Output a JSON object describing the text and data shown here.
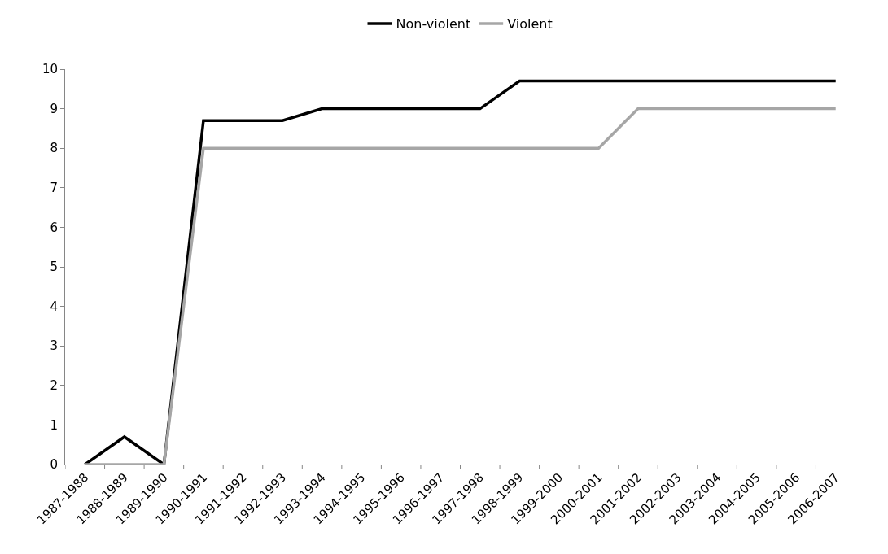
{
  "chart_data": {
    "type": "line",
    "categories": [
      "1987-1988",
      "1988-1989",
      "1989-1990",
      "1990-1991",
      "1991-1992",
      "1992-1993",
      "1993-1994",
      "1994-1995",
      "1995-1996",
      "1996-1997",
      "1997-1998",
      "1998-1999",
      "1999-2000",
      "2000-2001",
      "2001-2002",
      "2002-2003",
      "2003-2004",
      "2004-2005",
      "2005-2006",
      "2006-2007"
    ],
    "series": [
      {
        "name": "Non-violent",
        "color": "#000000",
        "values": [
          0,
          0.7,
          0,
          8.7,
          8.7,
          8.7,
          9,
          9,
          9,
          9,
          9,
          9.7,
          9.7,
          9.7,
          9.7,
          9.7,
          9.7,
          9.7,
          9.7,
          9.7
        ]
      },
      {
        "name": "Violent",
        "color": "#a6a6a6",
        "values": [
          0,
          0,
          0,
          8,
          8,
          8,
          8,
          8,
          8,
          8,
          8,
          8,
          8,
          8,
          9,
          9,
          9,
          9,
          9,
          9
        ]
      }
    ],
    "ylim": [
      0,
      10
    ],
    "yticks": [
      0,
      1,
      2,
      3,
      4,
      5,
      6,
      7,
      8,
      9,
      10
    ],
    "legend": "top",
    "marker": "none",
    "line_style": "solid"
  }
}
